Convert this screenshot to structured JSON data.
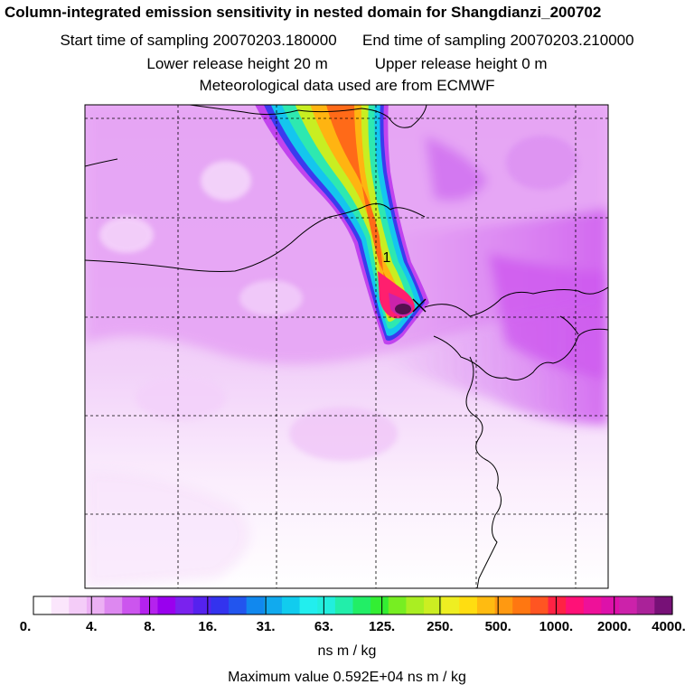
{
  "header": {
    "title": "Column-integrated emission sensitivity in nested domain for Shangdianzi_200702",
    "start_label": "Start time of sampling 20070203.180000",
    "end_label": "End time of sampling 20070203.210000",
    "lower_label": "Lower release height   20 m",
    "upper_label": "Upper release height    0 m",
    "met_label": "Meteorological data used are from ECMWF"
  },
  "map": {
    "marker_label": "1",
    "colors": {
      "background": "#ffffff",
      "light": "#f4d8fa",
      "mid": "#e8a6f4",
      "deep": "#d46ef0",
      "magenta": "#cc33ee"
    }
  },
  "legend": {
    "unit": "ns m / kg",
    "ticks": [
      "0.",
      "4.",
      "8.",
      "16.",
      "31.",
      "63.",
      "125.",
      "250.",
      "500.",
      "1000.",
      "2000.",
      "4000."
    ],
    "colors": [
      "#ffffff",
      "#fbe6fc",
      "#f4ccf8",
      "#ecb0f4",
      "#dd88f0",
      "#cc55ee",
      "#b522ee",
      "#9900ee",
      "#7a22ee",
      "#5522ee",
      "#3333ee",
      "#2255ee",
      "#1188ee",
      "#11aaee",
      "#11ccee",
      "#22eeee",
      "#22eedd",
      "#22eeaa",
      "#22ee66",
      "#33ee33",
      "#77ee22",
      "#aaee22",
      "#ccee22",
      "#eeee22",
      "#ffdd11",
      "#ffbb11",
      "#ff9911",
      "#ff7711",
      "#ff5522",
      "#ff2244",
      "#ff1177",
      "#ee1199",
      "#dd11aa",
      "#cc22aa",
      "#aa2299",
      "#771177"
    ],
    "max_label": "Maximum value  0.592E+04 ns m / kg"
  }
}
